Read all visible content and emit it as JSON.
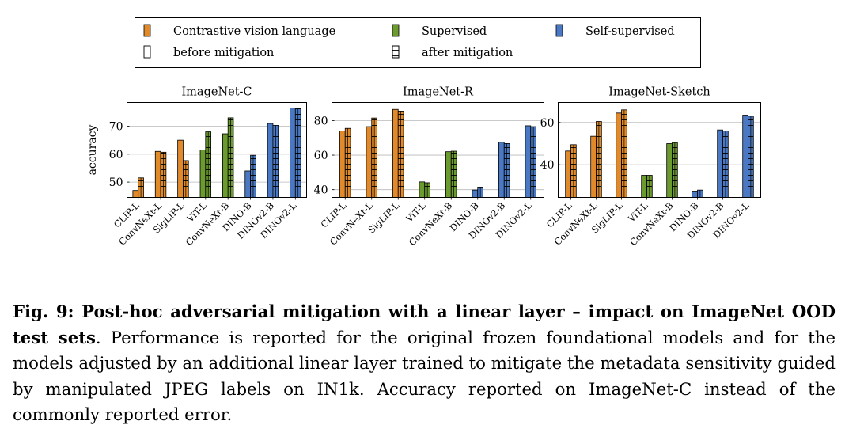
{
  "legend": {
    "categories": [
      {
        "label": "Contrastive vision language",
        "color": "#e08a2c"
      },
      {
        "label": "Supervised",
        "color": "#6b9a2f"
      },
      {
        "label": "Self-supervised",
        "color": "#4a78c2"
      }
    ],
    "styles": [
      {
        "label": "before mitigation",
        "pattern": "plain"
      },
      {
        "label": "after mitigation",
        "pattern": "grid"
      }
    ]
  },
  "chart_data": [
    {
      "type": "bar",
      "title": "ImageNet-C",
      "ylabel": "accuracy",
      "ylim": [
        44.5,
        78.5
      ],
      "yticks": [
        50,
        60,
        70
      ],
      "grid": true,
      "categories": [
        "CLIP-L",
        "ConvNeXt-L",
        "SigLIP-L",
        "ViT-L",
        "ConvNeXt-B",
        "DINO-B",
        "DINOv2-B",
        "DINOv2-L"
      ],
      "category_groups": [
        "Contrastive vision language",
        "Contrastive vision language",
        "Contrastive vision language",
        "Supervised",
        "Supervised",
        "Self-supervised",
        "Self-supervised",
        "Self-supervised"
      ],
      "series": [
        {
          "name": "before mitigation",
          "values": [
            47.0,
            61.0,
            65.0,
            61.5,
            67.3,
            54.0,
            71.0,
            76.5
          ]
        },
        {
          "name": "after mitigation",
          "values": [
            51.5,
            60.7,
            57.7,
            68.0,
            73.0,
            59.6,
            70.3,
            76.5
          ]
        }
      ]
    },
    {
      "type": "bar",
      "title": "ImageNet-R",
      "ylabel": "",
      "ylim": [
        35.5,
        90.5
      ],
      "yticks": [
        40,
        60,
        80
      ],
      "grid": true,
      "categories": [
        "CLIP-L",
        "ConvNeXt-L",
        "SigLIP-L",
        "ViT-L",
        "ConvNeXt-B",
        "DINO-B",
        "DINOv2-B",
        "DINOv2-L"
      ],
      "category_groups": [
        "Contrastive vision language",
        "Contrastive vision language",
        "Contrastive vision language",
        "Supervised",
        "Supervised",
        "Self-supervised",
        "Self-supervised",
        "Self-supervised"
      ],
      "series": [
        {
          "name": "before mitigation",
          "values": [
            74.0,
            76.5,
            86.5,
            44.5,
            62.0,
            39.8,
            67.5,
            77.0
          ]
        },
        {
          "name": "after mitigation",
          "values": [
            75.5,
            81.5,
            85.5,
            44.0,
            62.3,
            41.5,
            66.7,
            76.5
          ]
        }
      ]
    },
    {
      "type": "bar",
      "title": "ImageNet-Sketch",
      "ylabel": "",
      "ylim": [
        24.5,
        69.5
      ],
      "yticks": [
        40,
        60
      ],
      "grid": true,
      "categories": [
        "CLIP-L",
        "ConvNeXt-L",
        "SigLIP-L",
        "ViT-L",
        "ConvNeXt-B",
        "DINO-B",
        "DINOv2-B",
        "DINOv2-L"
      ],
      "category_groups": [
        "Contrastive vision language",
        "Contrastive vision language",
        "Contrastive vision language",
        "Supervised",
        "Supervised",
        "Self-supervised",
        "Self-supervised",
        "Self-supervised"
      ],
      "series": [
        {
          "name": "before mitigation",
          "values": [
            46.5,
            53.5,
            64.5,
            35.0,
            50.0,
            27.5,
            56.5,
            63.5
          ]
        },
        {
          "name": "after mitigation",
          "values": [
            49.5,
            60.5,
            66.0,
            35.0,
            50.5,
            28.0,
            56.0,
            63.0
          ]
        }
      ]
    }
  ],
  "caption": {
    "label": "Fig. 9: Post-hoc adversarial mitigation with a linear layer – impact on ImageNet OOD test sets",
    "text": ". Performance is reported for the original frozen foundational models and for the models adjusted by an additional linear layer trained to mitigate the metadata sensitivity guided by manipulated JPEG labels on IN1k. Accuracy reported on ImageNet-C instead of the commonly reported error."
  }
}
